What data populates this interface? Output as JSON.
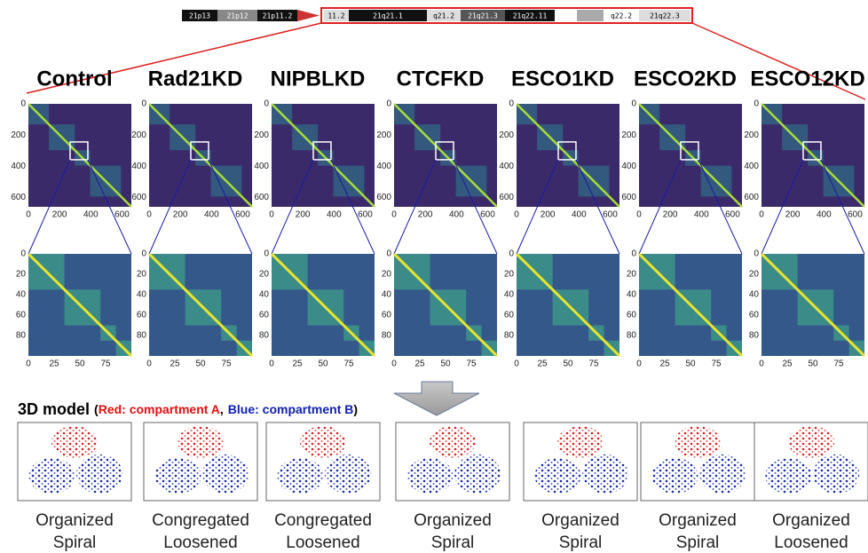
{
  "ideogram": {
    "bands": [
      "21p13",
      "21p12",
      "21p11.2",
      "11.2",
      "21q21.1",
      "q21.2",
      "21q21.3",
      "21q22.11",
      "q22.2",
      "21q22.3"
    ]
  },
  "columns": [
    {
      "title": "Control",
      "model": [
        "Organized",
        "Spiral"
      ]
    },
    {
      "title": "Rad21KD",
      "model": [
        "Congregated",
        "Loosened"
      ]
    },
    {
      "title": "NIPBLKD",
      "model": [
        "Congregated",
        "Loosened"
      ]
    },
    {
      "title": "CTCFKD",
      "model": [
        "Organized",
        "Spiral"
      ]
    },
    {
      "title": "ESCO1KD",
      "model": [
        "Organized",
        "Spiral"
      ]
    },
    {
      "title": "ESCO2KD",
      "model": [
        "Organized",
        "Spiral"
      ]
    },
    {
      "title": "ESCO12KD",
      "model": [
        "Organized",
        "Loosened"
      ]
    }
  ],
  "heatmap": {
    "xticks": [
      0,
      200,
      400,
      600
    ],
    "yticks": [
      0,
      200,
      400,
      600
    ]
  },
  "zoom": {
    "xticks": [
      0,
      25,
      50,
      75
    ],
    "yticks": [
      0,
      20,
      40,
      60,
      80
    ]
  },
  "model_heading": {
    "title": "3D model",
    "open": "(",
    "red": "Red: compartment A",
    "comma": ",",
    "blue": "Blue: compartment B",
    "close": ")"
  }
}
